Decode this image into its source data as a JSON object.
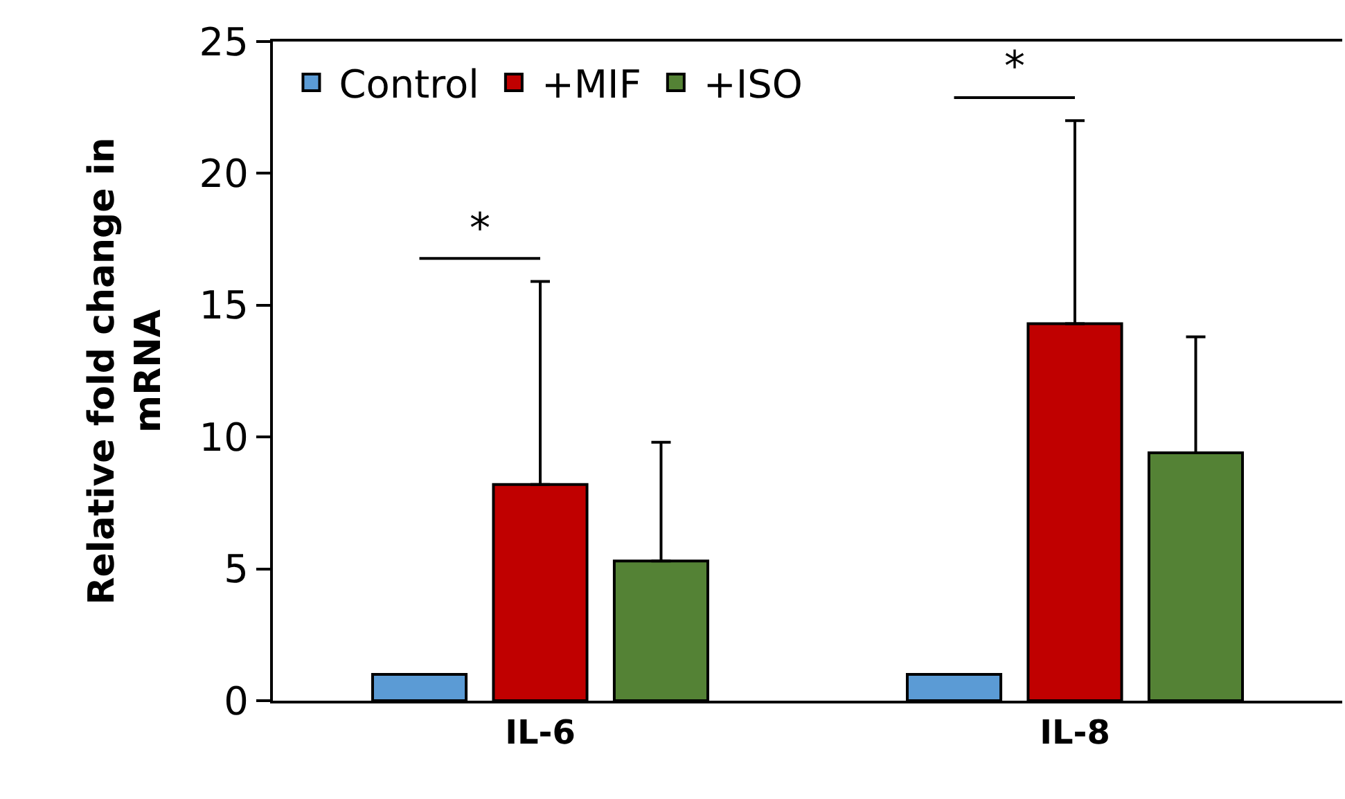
{
  "chart_data": {
    "type": "bar",
    "ylabel": "Relative fold change in mRNA",
    "categories": [
      "IL-6",
      "IL-8"
    ],
    "series": [
      {
        "name": "Control",
        "color": "#5b9bd5",
        "values": [
          1.0,
          1.0
        ]
      },
      {
        "name": "+MIF",
        "color": "#c00000",
        "values": [
          8.2,
          14.3
        ],
        "errors": [
          [
            8.2,
            15.9
          ],
          [
            14.3,
            22.0
          ]
        ]
      },
      {
        "name": "+ISO",
        "color": "#548235",
        "values": [
          5.3,
          9.4
        ],
        "errors": [
          [
            5.3,
            9.8
          ],
          [
            9.4,
            13.8
          ]
        ]
      }
    ],
    "ylim": [
      0,
      25
    ],
    "yticks": [
      0,
      5,
      10,
      15,
      20,
      25
    ],
    "legend": "top left",
    "annotations": [
      "*",
      "*"
    ]
  }
}
